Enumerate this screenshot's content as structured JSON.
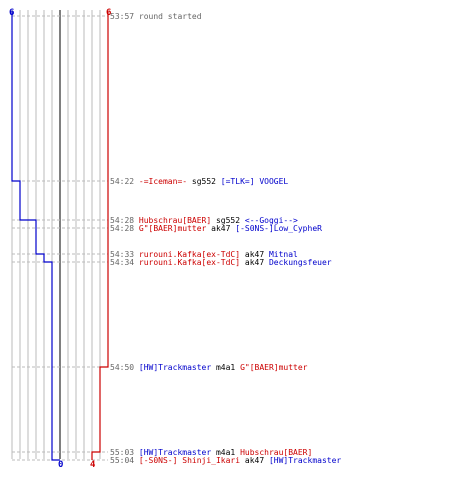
{
  "colors": {
    "blue": "#0000cc",
    "red": "#cc0000",
    "time": "#666666",
    "text": "#000000",
    "grid": "#bbbbbb",
    "dash": "#bbbbbb",
    "center": "#555555"
  },
  "score": {
    "blue_start": "6",
    "red_start": "6",
    "blue_end": "0",
    "red_end": "4"
  },
  "events": [
    {
      "time": "53:57",
      "parts": [
        {
          "t": "round started",
          "c": "time"
        }
      ]
    },
    {
      "time": "54:22",
      "parts": [
        {
          "t": "-=Iceman=-",
          "c": "red"
        },
        {
          "t": " sg552 ",
          "c": "text"
        },
        {
          "t": "[=TLK=] VOOGEL",
          "c": "blue"
        }
      ]
    },
    {
      "time": "54:28",
      "parts": [
        {
          "t": "Hubschrau[BAER]",
          "c": "red"
        },
        {
          "t": " sg552 ",
          "c": "text"
        },
        {
          "t": "<--Goggi-->",
          "c": "blue"
        }
      ]
    },
    {
      "time": "54:28",
      "parts": [
        {
          "t": "G\"[BAER]mutter",
          "c": "red"
        },
        {
          "t": " ak47 ",
          "c": "text"
        },
        {
          "t": "[-S0NS-]Low_CypheR",
          "c": "blue"
        }
      ]
    },
    {
      "time": "54:33",
      "parts": [
        {
          "t": "rurouni.Kafka[ex-TdC]",
          "c": "red"
        },
        {
          "t": " ak47 ",
          "c": "text"
        },
        {
          "t": "Mitnal",
          "c": "blue"
        }
      ]
    },
    {
      "time": "54:34",
      "parts": [
        {
          "t": "rurouni.Kafka[ex-TdC]",
          "c": "red"
        },
        {
          "t": " ak47 ",
          "c": "text"
        },
        {
          "t": "Deckungsfeuer",
          "c": "blue"
        }
      ]
    },
    {
      "time": "54:50",
      "parts": [
        {
          "t": "[HW]Trackmaster",
          "c": "blue"
        },
        {
          "t": " m4a1 ",
          "c": "text"
        },
        {
          "t": "G\"[BAER]mutter",
          "c": "red"
        }
      ]
    },
    {
      "time": "55:03",
      "parts": [
        {
          "t": "[HW]Trackmaster",
          "c": "blue"
        },
        {
          "t": " m4a1 ",
          "c": "text"
        },
        {
          "t": "Hubschrau[BAER]",
          "c": "red"
        }
      ]
    },
    {
      "time": "55:04",
      "parts": [
        {
          "t": "[-S0NS-] Shinji_Ikari",
          "c": "red"
        },
        {
          "t": " ak47 ",
          "c": "text"
        },
        {
          "t": "[HW]Trackmaster",
          "c": "blue"
        }
      ]
    }
  ]
}
